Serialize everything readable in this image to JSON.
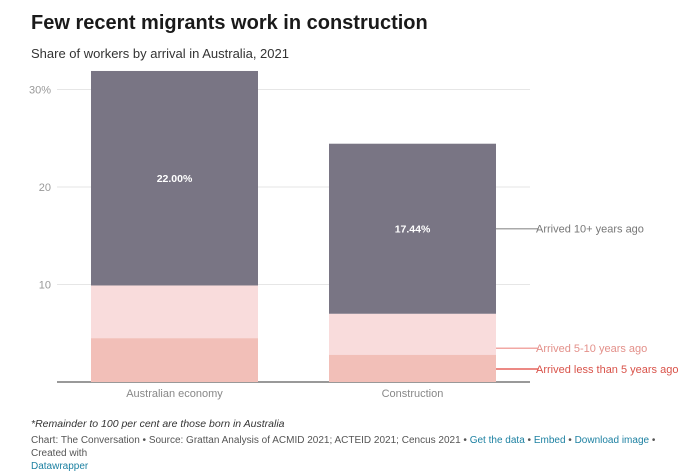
{
  "header": {
    "title": "Few recent migrants work in construction",
    "subtitle": "Share of workers by arrival in Australia, 2021"
  },
  "colors": {
    "arrived_10_plus": "#797584",
    "arrived_5_10": "#f9dcdc",
    "arrived_less_5": "#f2bfb8",
    "label_10_plus": "#777777",
    "label_5_10": "#e3908a",
    "label_less_5": "#d9534a"
  },
  "chart_data": {
    "type": "bar",
    "stacked": true,
    "categories": [
      "Australian economy",
      "Construction"
    ],
    "series": [
      {
        "name": "Arrived less than 5 years ago",
        "values": [
          4.5,
          2.8
        ]
      },
      {
        "name": "Arrived 5-10 years ago",
        "values": [
          5.4,
          4.2
        ]
      },
      {
        "name": "Arrived 10+ years ago",
        "values": [
          22.0,
          17.44
        ],
        "labels": [
          "22.00%",
          "17.44%"
        ]
      }
    ],
    "yticks": [
      "30%",
      "20",
      "10"
    ],
    "ytick_values": [
      30,
      20,
      10
    ],
    "ylim": [
      0,
      32
    ],
    "grid": true,
    "legend": "direct labels right"
  },
  "footer": {
    "note": "*Remainder to 100 per cent are those born in Australia",
    "source": "Chart: The Conversation • Source: Grattan Analysis of ACMID 2021; ACTEID 2021; Cencus 2021 • ",
    "links": {
      "get_data": "Get the data",
      "embed": "Embed",
      "download": "Download image",
      "credit_prefix": " • Created with ",
      "datawrapper": "Datawrapper"
    }
  }
}
